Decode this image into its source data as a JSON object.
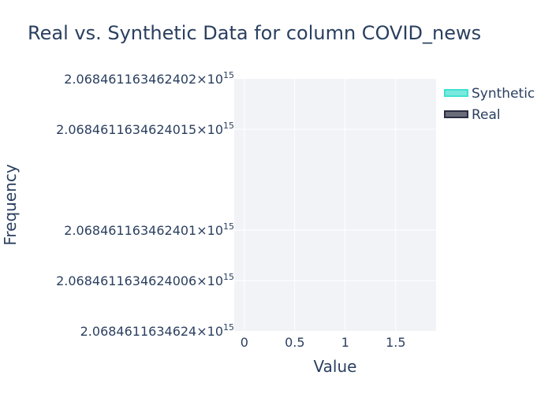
{
  "chart_data": {
    "type": "histogram",
    "title": "Real vs. Synthetic Data for column COVID_news",
    "xlabel": "Value",
    "ylabel": "Frequency",
    "xlim": [
      -0.1,
      1.9
    ],
    "x_ticks": [
      "0",
      "0.5",
      "1",
      "1.5"
    ],
    "x_tick_values": [
      0,
      0.5,
      1,
      1.5
    ],
    "y_ticks": [
      {
        "mantissa": "2.068461163462402",
        "exp": "15"
      },
      {
        "mantissa": "2.0684611634624015",
        "exp": "15"
      },
      {
        "mantissa": "2.068461163462401",
        "exp": "15"
      },
      {
        "mantissa": "2.0684611634624006",
        "exp": "15"
      },
      {
        "mantissa": "2.0684611634624",
        "exp": "15"
      }
    ],
    "grid": true,
    "legend_position": "top-right",
    "series": [
      {
        "name": "Synthetic",
        "color": "#40e0d0",
        "values": []
      },
      {
        "name": "Real",
        "color": "#2b2d42",
        "values": []
      }
    ]
  }
}
